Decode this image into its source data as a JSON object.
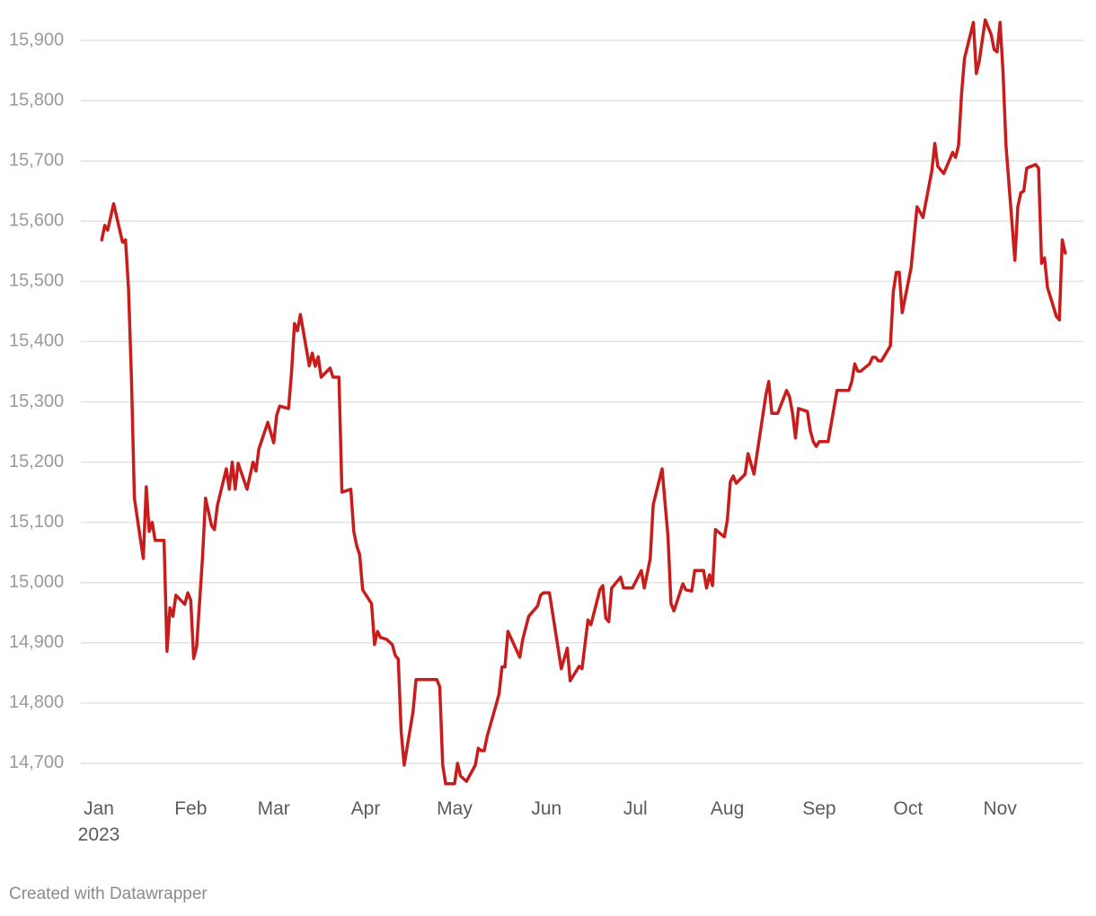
{
  "chart_data": {
    "type": "line",
    "credit": "Created with Datawrapper",
    "x": [
      2,
      3,
      4,
      6,
      9,
      10,
      11,
      12,
      13,
      15,
      16,
      17,
      18,
      19,
      20,
      23,
      24,
      25,
      26,
      27,
      30,
      31,
      32,
      33,
      34,
      36,
      37,
      39,
      40,
      41,
      44,
      45,
      46,
      47,
      48,
      51,
      53,
      54,
      55,
      58,
      60,
      61,
      62,
      65,
      66,
      67,
      68,
      69,
      72,
      73,
      74,
      75,
      76,
      79,
      80,
      82,
      83,
      86,
      87,
      88,
      89,
      90,
      93,
      94,
      95,
      96,
      98,
      100,
      101,
      102,
      103,
      104,
      107,
      108,
      115,
      116,
      117,
      118,
      121,
      122,
      123,
      125,
      128,
      129,
      130,
      131,
      132,
      135,
      136,
      137,
      138,
      139,
      143,
      144,
      146,
      149,
      150,
      151,
      153,
      157,
      159,
      160,
      163,
      164,
      166,
      167,
      170,
      171,
      172,
      173,
      174,
      177,
      178,
      181,
      184,
      185,
      187,
      188,
      191,
      193,
      194,
      195,
      198,
      199,
      201,
      202,
      205,
      206,
      207,
      208,
      209,
      212,
      213,
      214,
      215,
      216,
      219,
      220,
      222,
      226,
      227,
      228,
      230,
      233,
      234,
      235,
      236,
      237,
      240,
      241,
      242,
      243,
      244,
      247,
      250,
      254,
      255,
      256,
      257,
      258,
      261,
      262,
      263,
      264,
      265,
      268,
      269,
      270,
      271,
      272,
      275,
      277,
      279,
      282,
      283,
      284,
      286,
      289,
      290,
      291,
      292,
      293,
      296,
      297,
      298,
      300,
      302,
      303,
      304,
      305,
      306,
      307,
      310,
      311,
      312,
      313,
      314,
      317,
      318,
      319,
      320,
      321,
      324,
      325,
      326,
      327
    ],
    "series": [
      {
        "color": "#c71e1d",
        "values": [
          15569,
          15593,
          15585,
          15629,
          15565,
          15569,
          15490,
          15341,
          15140,
          15073,
          15040,
          15159,
          15085,
          15100,
          15070,
          15070,
          14886,
          14958,
          14944,
          14979,
          14964,
          14983,
          14971,
          14874,
          14894,
          15043,
          15140,
          15095,
          15088,
          15128,
          15189,
          15155,
          15200,
          15155,
          15198,
          15155,
          15200,
          15185,
          15222,
          15266,
          15232,
          15278,
          15293,
          15289,
          15348,
          15430,
          15418,
          15445,
          15360,
          15381,
          15359,
          15375,
          15341,
          15356,
          15341,
          15341,
          15150,
          15155,
          15085,
          15061,
          15046,
          14988,
          14965,
          14897,
          14919,
          14909,
          14906,
          14897,
          14879,
          14873,
          14752,
          14697,
          14786,
          14839,
          14839,
          14827,
          14697,
          14666,
          14666,
          14700,
          14679,
          14670,
          14697,
          14725,
          14721,
          14721,
          14745,
          14797,
          14815,
          14860,
          14860,
          14919,
          14876,
          14906,
          14944,
          14961,
          14979,
          14983,
          14983,
          14857,
          14891,
          14837,
          14861,
          14857,
          14938,
          14930,
          14988,
          14995,
          14941,
          14935,
          14991,
          15009,
          14991,
          14991,
          15020,
          14991,
          15040,
          15129,
          15189,
          15076,
          14965,
          14953,
          14998,
          14988,
          14986,
          15020,
          15020,
          14991,
          15013,
          14995,
          15088,
          15076,
          15103,
          15167,
          15177,
          15165,
          15180,
          15214,
          15180,
          15311,
          15334,
          15281,
          15281,
          15319,
          15308,
          15281,
          15240,
          15289,
          15284,
          15252,
          15234,
          15226,
          15234,
          15234,
          15319,
          15319,
          15334,
          15363,
          15351,
          15351,
          15363,
          15374,
          15374,
          15368,
          15368,
          15393,
          15483,
          15515,
          15515,
          15448,
          15523,
          15624,
          15606,
          15684,
          15729,
          15691,
          15679,
          15714,
          15706,
          15726,
          15810,
          15870,
          15930,
          15845,
          15866,
          15934,
          15910,
          15885,
          15881,
          15930,
          15848,
          15726,
          15535,
          15624,
          15647,
          15650,
          15688,
          15694,
          15688,
          15530,
          15539,
          15490,
          15442,
          15436,
          15569,
          15547
        ]
      }
    ],
    "xlim": [
      1,
      330
    ],
    "xticks": [
      {
        "value": 1,
        "label": "Jan\n2023"
      },
      {
        "value": 32,
        "label": "Feb"
      },
      {
        "value": 60,
        "label": "Mar"
      },
      {
        "value": 91,
        "label": "Apr"
      },
      {
        "value": 121,
        "label": "May"
      },
      {
        "value": 152,
        "label": "Jun"
      },
      {
        "value": 182,
        "label": "Jul"
      },
      {
        "value": 213,
        "label": "Aug"
      },
      {
        "value": 244,
        "label": "Sep"
      },
      {
        "value": 274,
        "label": "Oct"
      },
      {
        "value": 305,
        "label": "Nov"
      }
    ],
    "ylim": [
      14650,
      15950
    ],
    "yticks": [
      {
        "value": 14700,
        "label": "14,700"
      },
      {
        "value": 14800,
        "label": "14,800"
      },
      {
        "value": 14900,
        "label": "14,900"
      },
      {
        "value": 15000,
        "label": "15,000"
      },
      {
        "value": 15100,
        "label": "15,100"
      },
      {
        "value": 15200,
        "label": "15,200"
      },
      {
        "value": 15300,
        "label": "15,300"
      },
      {
        "value": 15400,
        "label": "15,400"
      },
      {
        "value": 15500,
        "label": "15,500"
      },
      {
        "value": 15600,
        "label": "15,600"
      },
      {
        "value": 15700,
        "label": "15,700"
      },
      {
        "value": 15800,
        "label": "15,800"
      },
      {
        "value": 15900,
        "label": "15,900"
      }
    ],
    "grid": true
  }
}
